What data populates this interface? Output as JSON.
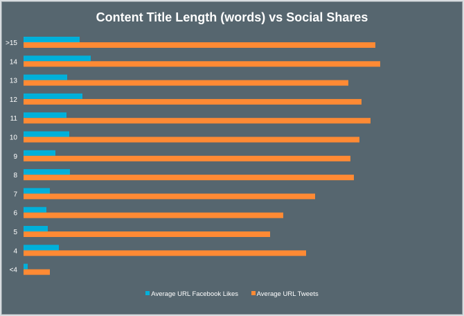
{
  "chart_data": {
    "type": "bar",
    "orientation": "horizontal",
    "title": "Content Title Length (words) vs Social Shares",
    "categories": [
      ">15",
      "14",
      "13",
      "12",
      "11",
      "10",
      "9",
      "8",
      "7",
      "6",
      "5",
      "4",
      "<4"
    ],
    "series": [
      {
        "name": "Average URL Facebook Likes",
        "color": "#00b0da",
        "values": [
          81,
          97,
          63,
          85,
          62,
          66,
          46,
          67,
          38,
          33,
          35,
          51,
          6
        ]
      },
      {
        "name": "Average URL Tweets",
        "color": "#ff8a34",
        "values": [
          508,
          515,
          469,
          488,
          501,
          485,
          472,
          477,
          421,
          375,
          356,
          408,
          38
        ]
      }
    ],
    "xlim": [
      0,
      600
    ],
    "grid": false,
    "x_axis_labels_shown": false,
    "legend_placement": "bottom",
    "background": "#56666f"
  }
}
